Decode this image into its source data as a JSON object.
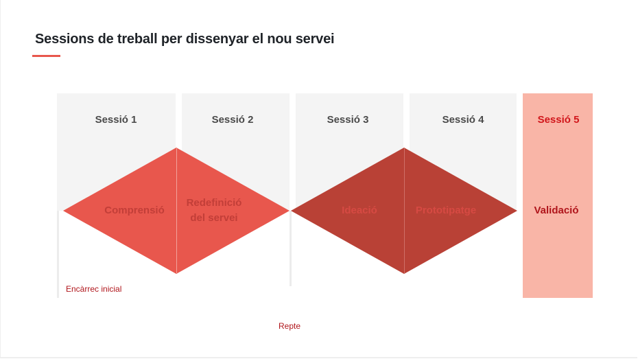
{
  "title": "Sessions de treball per dissenyar el nou servei",
  "sessions": [
    {
      "label": "Sessió 1"
    },
    {
      "label": "Sessió 2"
    },
    {
      "label": "Sessió 3"
    },
    {
      "label": "Sessió 4"
    },
    {
      "label": "Sessió 5"
    }
  ],
  "phases": {
    "comprensio": "Comprensió",
    "redefinicio_line1": "Redefinició",
    "redefinicio_line2": "del servei",
    "ideacio": "Ideació",
    "prototipatge": "Prototipatge",
    "validacio": "Validació"
  },
  "labels": {
    "encarrec": "Encàrrec inicial",
    "repte": "Repte"
  },
  "colors": {
    "accent": "#e8574d",
    "diamond_light": "#e8574d",
    "diamond_dark": "#b94136",
    "column_bg": "#f4f4f4",
    "highlight_bg": "#f9b5a7",
    "highlight_text": "#d1161b"
  }
}
